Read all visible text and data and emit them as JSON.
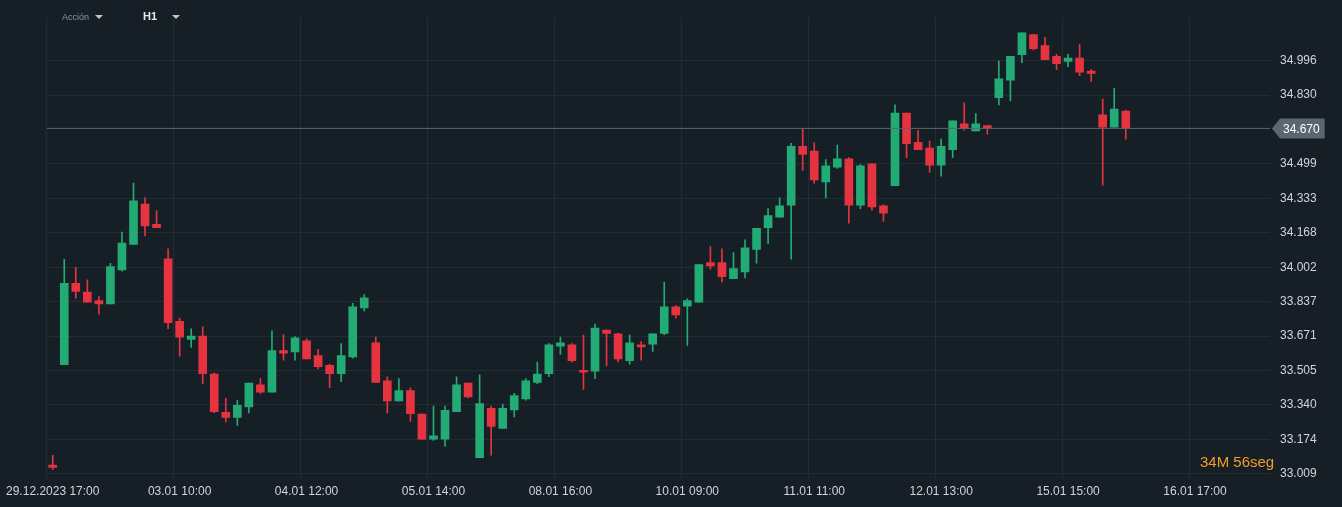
{
  "chart_data": {
    "type": "candlestick",
    "annotations": [
      "Acción",
      "H1",
      "34M 56seg"
    ],
    "categories": [
      "29.12.2023 17:00",
      null,
      null,
      null,
      null,
      null,
      null,
      null,
      null,
      null,
      null,
      "03.01 10:00",
      null,
      null,
      null,
      null,
      null,
      null,
      null,
      null,
      null,
      null,
      "04.01 12:00",
      null,
      null,
      null,
      null,
      null,
      null,
      null,
      null,
      null,
      null,
      "05.01 14:00",
      null,
      null,
      null,
      null,
      null,
      null,
      null,
      null,
      null,
      null,
      "08.01 16:00",
      null,
      null,
      null,
      null,
      null,
      null,
      null,
      null,
      null,
      null,
      "10.01 09:00",
      null,
      null,
      null,
      null,
      null,
      null,
      null,
      null,
      null,
      null,
      "11.01 11:00",
      null,
      null,
      null,
      null,
      null,
      null,
      null,
      null,
      null,
      null,
      "12.01 13:00",
      null,
      null,
      null,
      null,
      null,
      null,
      null,
      null,
      null,
      null,
      "15.01 15:00",
      null,
      null,
      null,
      null,
      null,
      null,
      null,
      null,
      null,
      null,
      "16.01 17:00",
      null,
      null,
      null,
      null,
      null,
      null
    ],
    "ohlc": [
      [
        33.05,
        33.097,
        33.029,
        33.039
      ],
      [
        33.533,
        34.04,
        33.533,
        33.925
      ],
      [
        33.925,
        34.002,
        33.853,
        33.886
      ],
      [
        33.883,
        33.941,
        33.834,
        33.834
      ],
      [
        33.841,
        33.861,
        33.776,
        33.825
      ],
      [
        33.825,
        34.021,
        33.825,
        34.005
      ],
      [
        33.989,
        34.171,
        33.983,
        34.118
      ],
      [
        34.112,
        34.407,
        34.112,
        34.321
      ],
      [
        34.306,
        34.336,
        34.153,
        34.201
      ],
      [
        34.208,
        34.275,
        34.192,
        34.192
      ],
      [
        34.043,
        34.091,
        33.706,
        33.735
      ],
      [
        33.742,
        33.757,
        33.574,
        33.665
      ],
      [
        33.655,
        33.706,
        33.616,
        33.671
      ],
      [
        33.671,
        33.715,
        33.442,
        33.49
      ],
      [
        33.488,
        33.494,
        33.302,
        33.307
      ],
      [
        33.304,
        33.371,
        33.258,
        33.279
      ],
      [
        33.279,
        33.362,
        33.241,
        33.337
      ],
      [
        33.33,
        33.445,
        33.301,
        33.445
      ],
      [
        33.436,
        33.466,
        33.395,
        33.401
      ],
      [
        33.401,
        33.696,
        33.401,
        33.601
      ],
      [
        33.601,
        33.677,
        33.555,
        33.589
      ],
      [
        33.594,
        33.668,
        33.555,
        33.662
      ],
      [
        33.648,
        33.657,
        33.561,
        33.561
      ],
      [
        33.577,
        33.607,
        33.513,
        33.523
      ],
      [
        33.53,
        33.535,
        33.423,
        33.49
      ],
      [
        33.49,
        33.635,
        33.451,
        33.577
      ],
      [
        33.57,
        33.828,
        33.564,
        33.812
      ],
      [
        33.806,
        33.87,
        33.792,
        33.855
      ],
      [
        33.638,
        33.666,
        33.448,
        33.448
      ],
      [
        33.455,
        33.475,
        33.301,
        33.359
      ],
      [
        33.359,
        33.466,
        33.359,
        33.408
      ],
      [
        33.408,
        33.422,
        33.26,
        33.297
      ],
      [
        33.295,
        33.295,
        33.175,
        33.175
      ],
      [
        33.175,
        33.334,
        33.169,
        33.191
      ],
      [
        33.175,
        33.334,
        33.141,
        33.313
      ],
      [
        33.307,
        33.475,
        33.307,
        33.436
      ],
      [
        33.445,
        33.445,
        33.373,
        33.378
      ],
      [
        33.086,
        33.484,
        33.086,
        33.346
      ],
      [
        33.323,
        33.334,
        33.098,
        33.236
      ],
      [
        33.227,
        33.343,
        33.227,
        33.323
      ],
      [
        33.316,
        33.395,
        33.282,
        33.384
      ],
      [
        33.368,
        33.466,
        33.362,
        33.455
      ],
      [
        33.448,
        33.546,
        33.442,
        33.488
      ],
      [
        33.49,
        33.635,
        33.475,
        33.629
      ],
      [
        33.622,
        33.666,
        33.583,
        33.638
      ],
      [
        33.629,
        33.635,
        33.546,
        33.552
      ],
      [
        33.506,
        33.676,
        33.414,
        33.497
      ],
      [
        33.502,
        33.729,
        33.466,
        33.709
      ],
      [
        33.699,
        33.699,
        33.527,
        33.683
      ],
      [
        33.681,
        33.685,
        33.546,
        33.561
      ],
      [
        33.552,
        33.677,
        33.536,
        33.638
      ],
      [
        33.629,
        33.644,
        33.555,
        33.618
      ],
      [
        33.632,
        33.681,
        33.597,
        33.681
      ],
      [
        33.683,
        33.931,
        33.677,
        33.812
      ],
      [
        33.812,
        33.818,
        33.757,
        33.773
      ],
      [
        33.815,
        33.85,
        33.626,
        33.841
      ],
      [
        33.834,
        34.015,
        33.834,
        34.015
      ],
      [
        34.024,
        34.101,
        33.993,
        34.008
      ],
      [
        34.024,
        34.091,
        33.931,
        33.956
      ],
      [
        33.947,
        34.073,
        33.947,
        33.996
      ],
      [
        33.98,
        34.134,
        33.95,
        34.095
      ],
      [
        34.088,
        34.189,
        34.021,
        34.189
      ],
      [
        34.192,
        34.284,
        34.115,
        34.25
      ],
      [
        34.243,
        34.336,
        34.243,
        34.297
      ],
      [
        34.3,
        34.598,
        34.041,
        34.584
      ],
      [
        34.584,
        34.666,
        34.468,
        34.545
      ],
      [
        34.561,
        34.6,
        34.407,
        34.422
      ],
      [
        34.413,
        34.52,
        34.336,
        34.49
      ],
      [
        34.483,
        34.59,
        34.477,
        34.523
      ],
      [
        34.523,
        34.529,
        34.214,
        34.3
      ],
      [
        34.3,
        34.496,
        34.284,
        34.49
      ],
      [
        34.499,
        34.499,
        34.276,
        34.292
      ],
      [
        34.297,
        34.303,
        34.223,
        34.262
      ],
      [
        34.394,
        34.783,
        34.394,
        34.744
      ],
      [
        34.744,
        34.744,
        34.529,
        34.596
      ],
      [
        34.603,
        34.661,
        34.568,
        34.568
      ],
      [
        34.575,
        34.609,
        34.458,
        34.493
      ],
      [
        34.493,
        34.618,
        34.44,
        34.584
      ],
      [
        34.568,
        34.706,
        34.529,
        34.706
      ],
      [
        34.692,
        34.793,
        34.661,
        34.67
      ],
      [
        34.658,
        34.741,
        34.658,
        34.692
      ],
      [
        34.683,
        34.683,
        34.642,
        34.674
      ],
      [
        34.818,
        34.995,
        34.783,
        34.909
      ],
      [
        34.902,
        35.017,
        34.802,
        35.017
      ],
      [
        35.025,
        35.13,
        34.986,
        35.13
      ],
      [
        35.121,
        35.121,
        35.047,
        35.053
      ],
      [
        35.069,
        35.108,
        35.001,
        35.001
      ],
      [
        35.017,
        35.026,
        34.953,
        34.982
      ],
      [
        34.992,
        35.026,
        34.967,
        35.008
      ],
      [
        35.008,
        35.075,
        34.924,
        34.94
      ],
      [
        34.946,
        34.953,
        34.896,
        34.935
      ],
      [
        34.735,
        34.811,
        34.397,
        34.676
      ],
      [
        34.676,
        34.863,
        34.676,
        34.763
      ],
      [
        34.753,
        34.758,
        34.618,
        34.67
      ],
      null,
      null,
      null,
      null,
      null,
      null,
      null,
      null,
      null,
      null,
      null,
      null
    ],
    "colors": [
      "#e5343f",
      "#22ab74",
      "#e5343f",
      "#e5343f",
      "#e5343f",
      "#22ab74",
      "#22ab74",
      "#22ab74",
      "#e5343f",
      "#e5343f",
      "#e5343f",
      "#e5343f",
      "#22ab74",
      "#e5343f",
      "#e5343f",
      "#e5343f",
      "#22ab74",
      "#22ab74",
      "#e5343f",
      "#22ab74",
      "#e5343f",
      "#22ab74",
      "#e5343f",
      "#e5343f",
      "#e5343f",
      "#22ab74",
      "#22ab74",
      "#22ab74",
      "#e5343f",
      "#e5343f",
      "#22ab74",
      "#e5343f",
      "#e5343f",
      "#22ab74",
      "#22ab74",
      "#22ab74",
      "#e5343f",
      "#22ab74",
      "#e5343f",
      "#22ab74",
      "#22ab74",
      "#22ab74",
      "#22ab74",
      "#22ab74",
      "#22ab74",
      "#e5343f",
      "#e5343f",
      "#22ab74",
      "#e5343f",
      "#e5343f",
      "#22ab74",
      "#e5343f",
      "#22ab74",
      "#22ab74",
      "#e5343f",
      "#22ab74",
      "#22ab74",
      "#e5343f",
      "#e5343f",
      "#22ab74",
      "#22ab74",
      "#22ab74",
      "#22ab74",
      "#22ab74",
      "#22ab74",
      "#e5343f",
      "#e5343f",
      "#22ab74",
      "#22ab74",
      "#e5343f",
      "#22ab74",
      "#e5343f",
      "#e5343f",
      "#22ab74",
      "#e5343f",
      "#e5343f",
      "#e5343f",
      "#22ab74",
      "#22ab74",
      "#e5343f",
      "#22ab74",
      "#e5343f",
      "#22ab74",
      "#22ab74",
      "#22ab74",
      "#e5343f",
      "#e5343f",
      "#e5343f",
      "#22ab74",
      "#e5343f",
      "#e5343f",
      "#e5343f",
      "#22ab74",
      "#e5343f",
      null,
      null,
      null,
      null,
      null,
      null,
      null,
      null,
      null,
      null,
      null,
      null
    ],
    "ylim": [
      32.985,
      35.205
    ],
    "yticks": [
      33.009,
      33.174,
      {
        "value": 33.34,
        "label": "33.340"
      },
      33.505,
      33.671,
      33.837,
      34.002,
      34.168,
      34.333,
      34.499,
      {
        "value": 34.83,
        "label": "34.830"
      },
      34.996
    ],
    "ref_lines": [
      {
        "axis": "y",
        "value": 34.67,
        "label": "34.670",
        "color": "#5b6670"
      }
    ],
    "grid": true
  }
}
